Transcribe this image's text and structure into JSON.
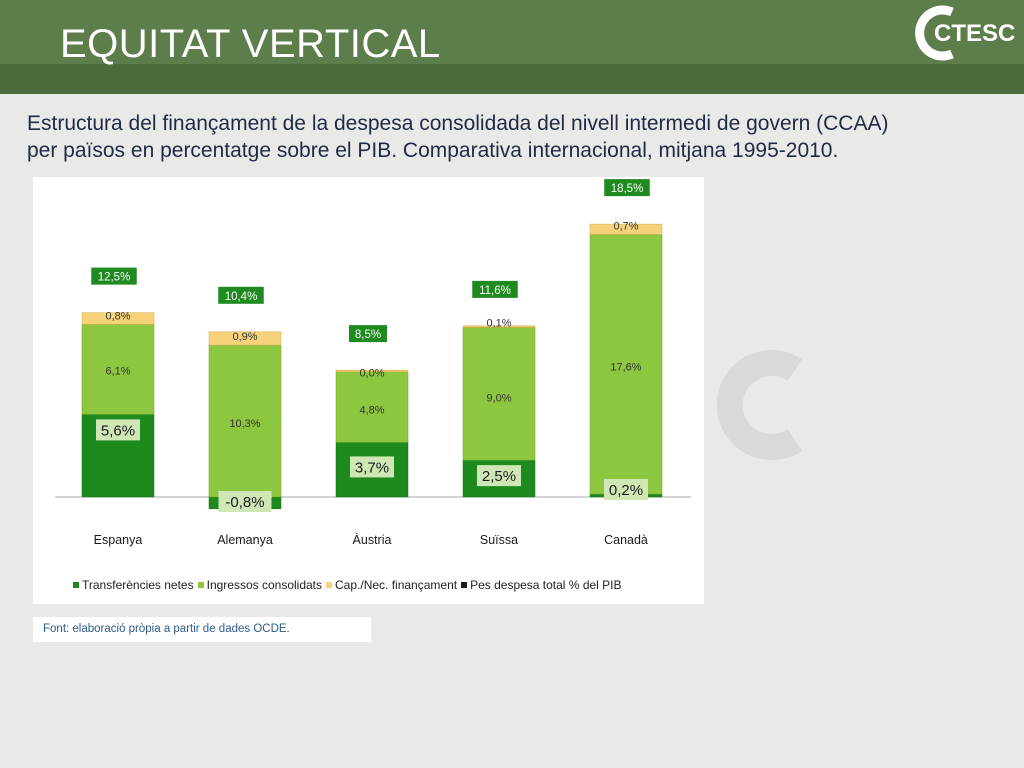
{
  "header": {
    "title": "EQUITAT VERTICAL",
    "logo_text": "CTESC"
  },
  "subtitle": {
    "line1": "Estructura del finançament de la despesa consolidada del nivell intermedi de govern (CCAA)",
    "line2": "per països en percentatge sobre el PIB. Comparativa internacional, mitjana 1995-2010."
  },
  "source": "Font: elaboració pròpia a partir de dades OCDE.",
  "colors": {
    "header": "#5d7e4a",
    "transfers": "#1e8a1e",
    "consolidated": "#8dc63f",
    "capacity": "#f6d27a",
    "total": "#1a1a1a",
    "total_label_bg": "#1f8a1f"
  },
  "chart_data": {
    "type": "bar",
    "stacked": true,
    "categories": [
      "Espanya",
      "Alemanya",
      "Àustria",
      "Suïssa",
      "Canadà"
    ],
    "series": [
      {
        "name": "Transferències netes",
        "values": [
          5.6,
          -0.8,
          3.7,
          2.5,
          0.2
        ],
        "labels": [
          "5,6%",
          "-0,8%",
          "3,7%",
          "2,5%",
          "0,2%"
        ]
      },
      {
        "name": "Ingressos consolidats",
        "values": [
          6.1,
          10.3,
          4.8,
          9.0,
          17.6
        ],
        "labels": [
          "6,1%",
          "10,3%",
          "4,8%",
          "9,0%",
          "17,6%"
        ]
      },
      {
        "name": "Cap./Nec. finançament",
        "values": [
          0.8,
          0.9,
          0.0,
          0.1,
          0.7
        ],
        "labels": [
          "0,8%",
          "0,9%",
          "0,0%",
          "0,1%",
          "0,7%"
        ]
      }
    ],
    "total_series": {
      "name": "Pes despesa total % del PIB",
      "values": [
        12.5,
        10.4,
        8.5,
        11.6,
        18.5
      ],
      "labels": [
        "12,5%",
        "10,4%",
        "8,5%",
        "11,6%",
        "18,5%"
      ]
    },
    "legend": [
      "Transferències netes",
      "Ingressos consolidats",
      "Cap./Nec. finançament",
      "Pes despesa total % del PIB"
    ],
    "legend_position": "bottom",
    "ylim": [
      -1,
      19
    ],
    "grid": false,
    "xlabel": "",
    "ylabel": ""
  }
}
